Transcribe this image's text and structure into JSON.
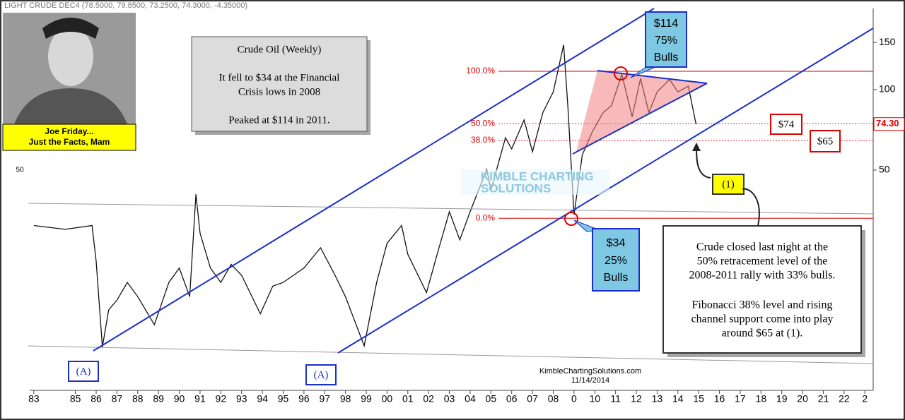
{
  "header": "LIGHT CRUDE DEC4 (78.5000, 79.8500, 73.2500, 74.3000, -4.35000)",
  "chart_data": {
    "type": "line",
    "log_scale": true,
    "series": [
      {
        "name": "Light Crude (Weekly)",
        "color": "#111111",
        "x": [
          1983.0,
          1984.5,
          1985.8,
          1986.0,
          1986.3,
          1986.6,
          1987.0,
          1987.5,
          1988.0,
          1988.8,
          1989.5,
          1990.0,
          1990.5,
          1990.8,
          1991.0,
          1991.5,
          1992.0,
          1992.5,
          1993.0,
          1993.9,
          1994.5,
          1995.0,
          1996.0,
          1996.8,
          1997.5,
          1998.0,
          1998.9,
          1999.5,
          2000.0,
          2000.7,
          2001.0,
          2001.9,
          2002.5,
          2003.0,
          2003.5,
          2004.0,
          2004.8,
          2005.0,
          2005.7,
          2006.0,
          2006.6,
          2007.0,
          2007.5,
          2008.0,
          2008.5,
          2008.7,
          2008.9,
          2009.0,
          2009.4,
          2009.9,
          2010.4,
          2010.8,
          2011.3,
          2011.8,
          2012.2,
          2012.6,
          2013.0,
          2013.6,
          2014.0,
          2014.5,
          2014.87
        ],
        "values": [
          31,
          30,
          31,
          22.8,
          10.9,
          15,
          16.3,
          19,
          16.8,
          13.2,
          19,
          21.5,
          16.8,
          40.6,
          29,
          21.5,
          19,
          22.2,
          20.2,
          14.5,
          18.4,
          19,
          21.5,
          25.6,
          20.2,
          16.8,
          11,
          19,
          26.6,
          31,
          24.2,
          17.4,
          25.6,
          34.9,
          27.4,
          34.9,
          50.3,
          42,
          66,
          60,
          77,
          58.5,
          82,
          98,
          147,
          87,
          47,
          34,
          57,
          70,
          82,
          87,
          114,
          79,
          110,
          82,
          98,
          109,
          98,
          103,
          74.3
        ]
      }
    ],
    "xlim": [
      1982.8,
      2023.4
    ],
    "xticks": [
      {
        "value": 1983,
        "label": "83"
      },
      {
        "value": 1985,
        "label": "85"
      },
      {
        "value": 1986,
        "label": "86"
      },
      {
        "value": 1987,
        "label": "87"
      },
      {
        "value": 1988,
        "label": "88"
      },
      {
        "value": 1989,
        "label": "89"
      },
      {
        "value": 1990,
        "label": "90"
      },
      {
        "value": 1991,
        "label": "91"
      },
      {
        "value": 1992,
        "label": "92"
      },
      {
        "value": 1993,
        "label": "93"
      },
      {
        "value": 1994,
        "label": "94"
      },
      {
        "value": 1995,
        "label": "95"
      },
      {
        "value": 1996,
        "label": "96"
      },
      {
        "value": 1997,
        "label": "97"
      },
      {
        "value": 1998,
        "label": "98"
      },
      {
        "value": 1999,
        "label": "99"
      },
      {
        "value": 2000,
        "label": "00"
      },
      {
        "value": 2001,
        "label": "01"
      },
      {
        "value": 2002,
        "label": "02"
      },
      {
        "value": 2003,
        "label": "03"
      },
      {
        "value": 2004,
        "label": "04"
      },
      {
        "value": 2005,
        "label": "05"
      },
      {
        "value": 2006,
        "label": "06"
      },
      {
        "value": 2007,
        "label": "07"
      },
      {
        "value": 2008,
        "label": "08"
      },
      {
        "value": 2009,
        "label": "0"
      },
      {
        "value": 2010,
        "label": "10"
      },
      {
        "value": 2011,
        "label": "11"
      },
      {
        "value": 2012,
        "label": "12"
      },
      {
        "value": 2013,
        "label": "13"
      },
      {
        "value": 2014,
        "label": "14"
      },
      {
        "value": 2015,
        "label": "15"
      },
      {
        "value": 2016,
        "label": "16"
      },
      {
        "value": 2017,
        "label": "17"
      },
      {
        "value": 2018,
        "label": "18"
      },
      {
        "value": 2019,
        "label": "19"
      },
      {
        "value": 2020,
        "label": "20"
      },
      {
        "value": 2021,
        "label": "21"
      },
      {
        "value": 2022,
        "label": "22"
      },
      {
        "value": 2023,
        "label": "2"
      }
    ],
    "ylim": [
      7.5,
      201
    ],
    "yticks": [
      50,
      100,
      150
    ],
    "left_ticks": [
      50
    ],
    "fib_levels": [
      {
        "label": "100.0%",
        "value": 117
      },
      {
        "label": "50.0%",
        "value": 74.5
      },
      {
        "label": "38.0%",
        "value": 64.5
      },
      {
        "label": "0.0%",
        "value": 33
      }
    ],
    "last_price": {
      "value": 74.3,
      "label": "74.30"
    }
  },
  "annotations": {
    "photo_caption": [
      "Joe Friday...",
      "Just the Facts, Mam"
    ],
    "summary_box": [
      "Crude Oil (Weekly)",
      "It fell to $34 at the Financial",
      "Crisis lows in 2008",
      "Peaked at $114 in 2011."
    ],
    "top_callout": [
      "$114",
      "75%",
      "Bulls"
    ],
    "bottom_callout": [
      "$34",
      "25%",
      "Bulls"
    ],
    "price_74": "$74",
    "price_65": "$65",
    "point_1": "(1)",
    "point_a": "(A)",
    "note": [
      "Crude closed last night at the",
      "50% retracement level of the",
      "2008-2011 rally with 33% bulls.",
      "Fibonacci 38% level and rising",
      "channel support come into play",
      "around $65 at (1)."
    ],
    "watermark": [
      "KIMBLE CHARTING",
      "SOLUTIONS"
    ],
    "credit": [
      "KimbleChartingSolutions.com",
      "11/14/2014"
    ]
  }
}
